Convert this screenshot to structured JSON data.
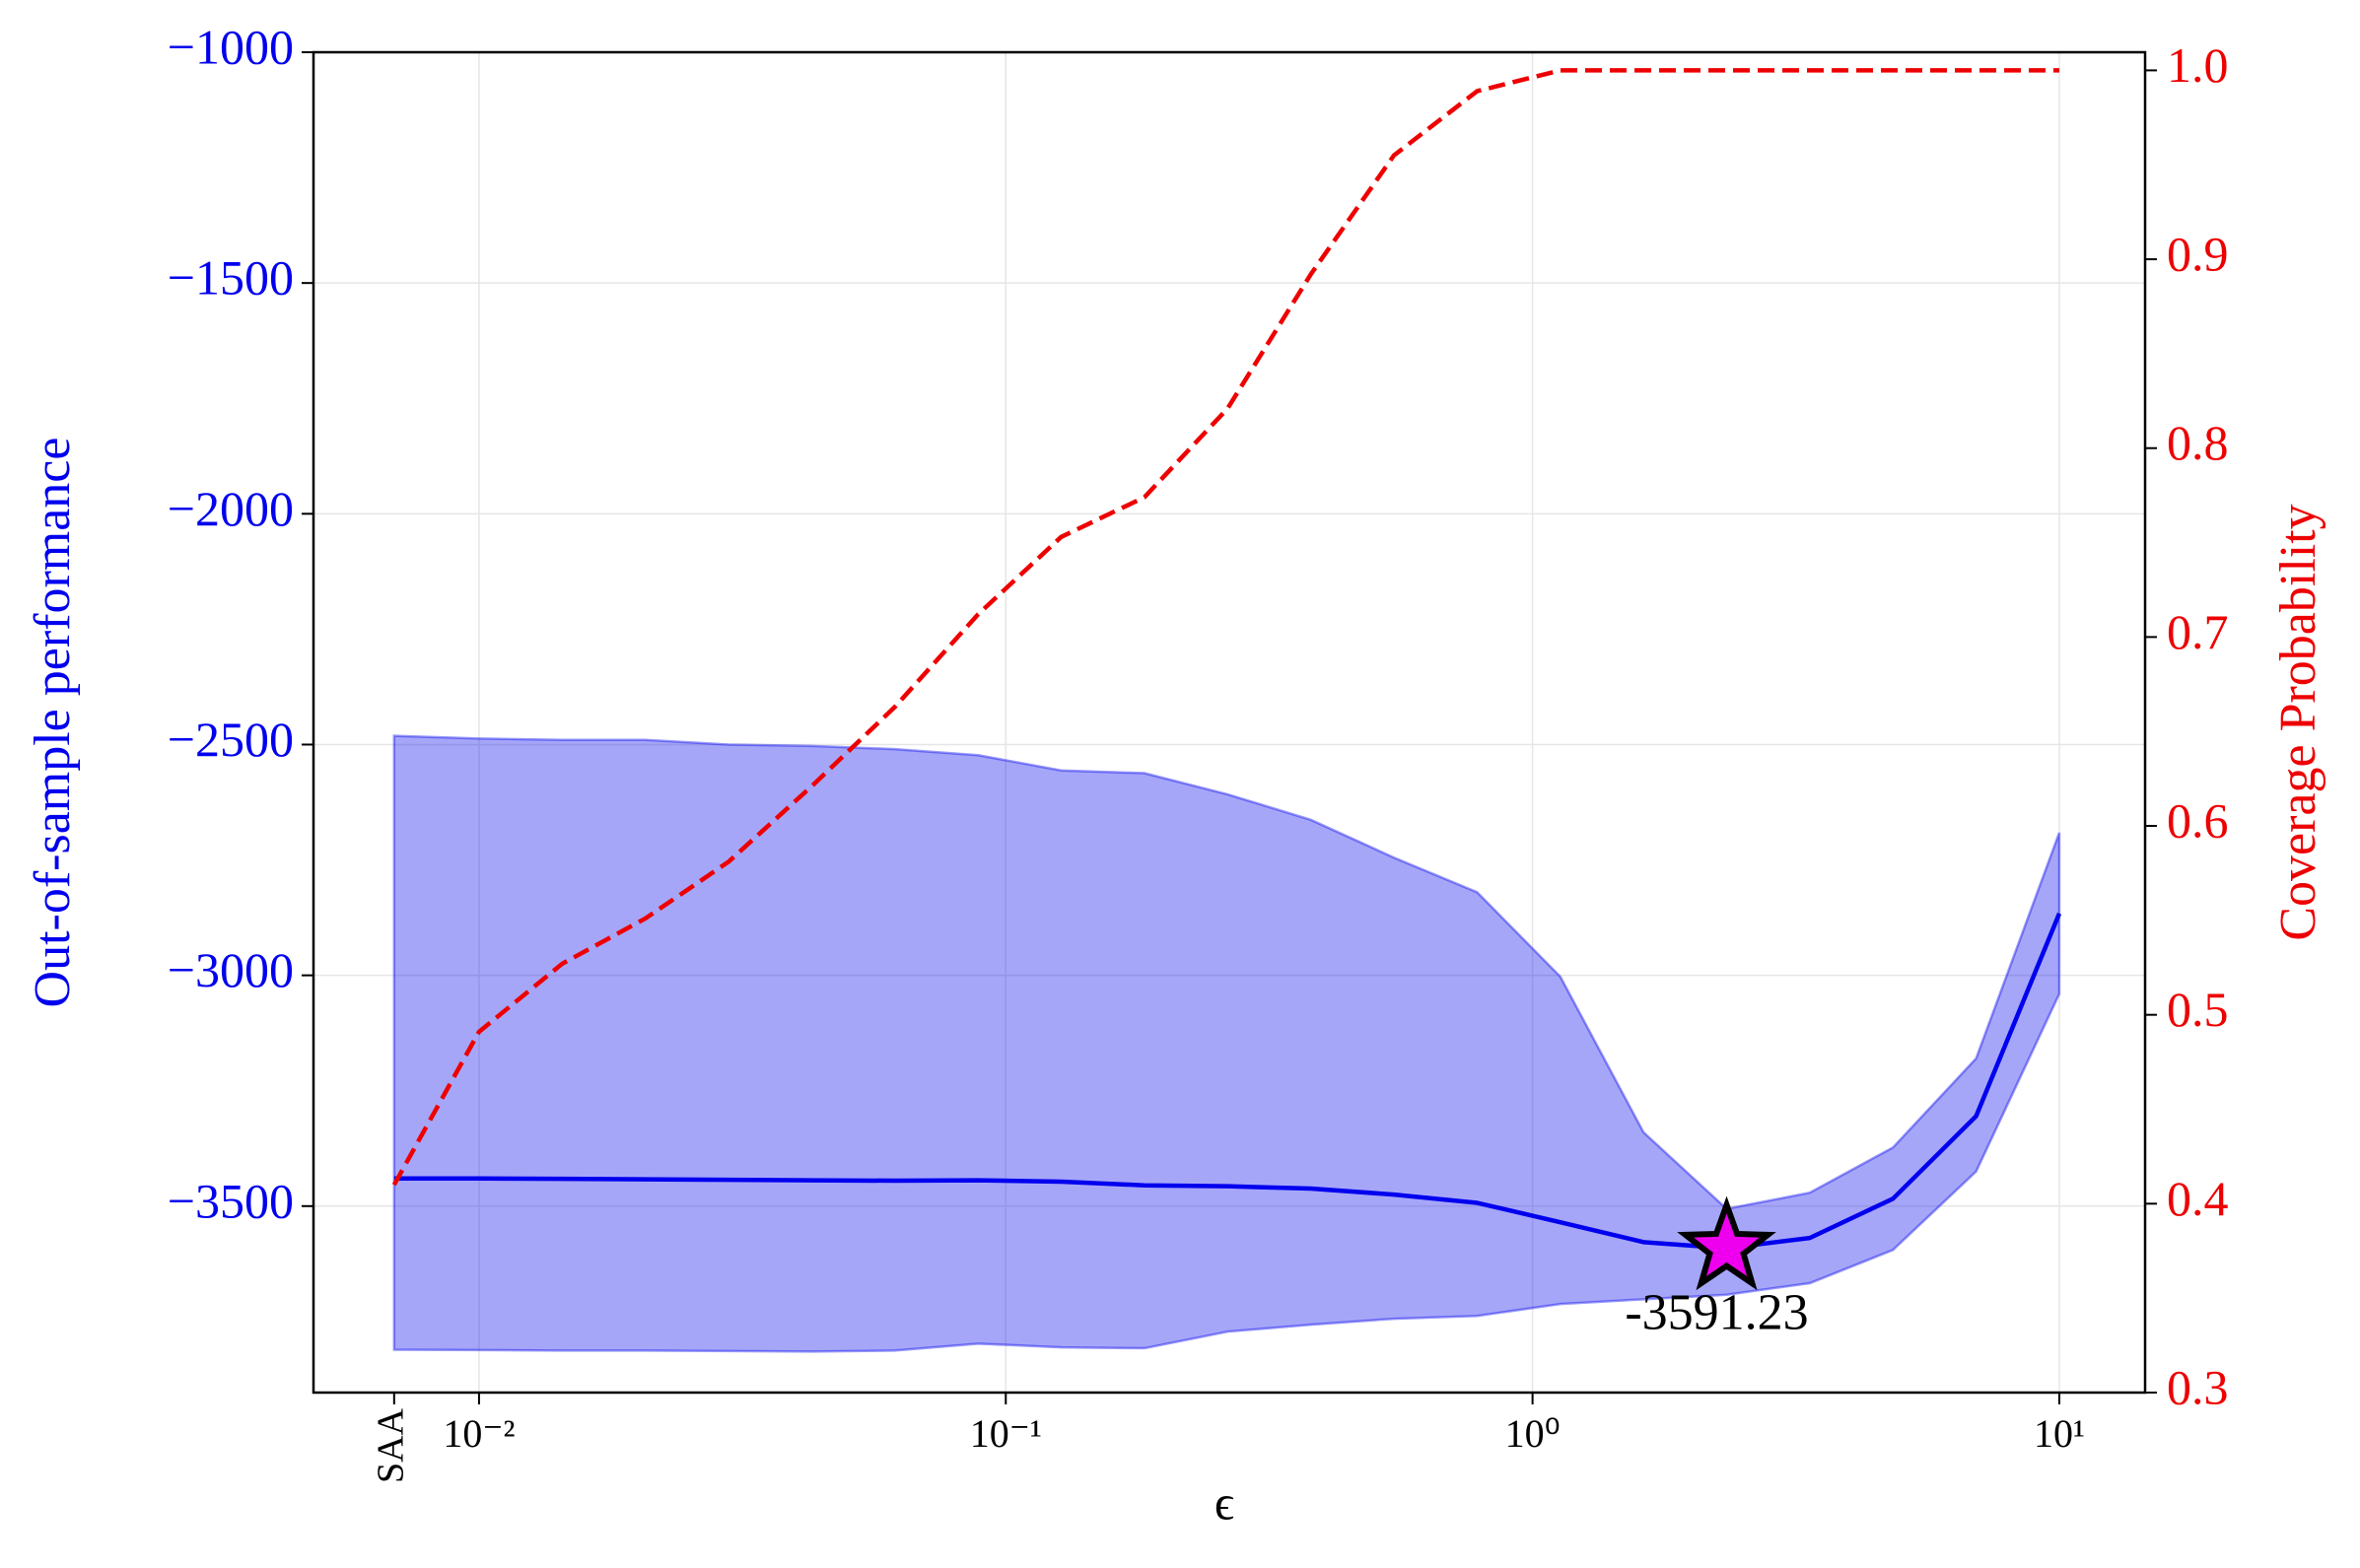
{
  "chart_data": {
    "type": "line",
    "xlabel": "ϵ",
    "ylabel": "Out-of-sample performance",
    "y2label": "Coverage Probability",
    "xscale": "log",
    "grid": true,
    "x": [
      0.0069,
      0.01,
      0.01438,
      0.02069,
      0.02976,
      0.04281,
      0.06158,
      0.08859,
      0.1274,
      0.1833,
      0.2637,
      0.3793,
      0.5456,
      0.7848,
      1.129,
      1.624,
      2.336,
      3.36,
      4.833,
      6.952,
      10
    ],
    "xlim": [
      0.00485,
      14.55
    ],
    "xticks": [
      {
        "value": 0.01,
        "label": "10⁻²"
      },
      {
        "value": 0.1,
        "label": "10⁻¹"
      },
      {
        "value": 1,
        "label": "10⁰"
      },
      {
        "value": 10,
        "label": "10¹"
      }
    ],
    "saa_tick": {
      "value": 0.0069,
      "label": "SAA"
    },
    "ylim": [
      -3904,
      -1000
    ],
    "yticks": [
      {
        "value": -1000,
        "label": "−1000"
      },
      {
        "value": -1500,
        "label": "−1500"
      },
      {
        "value": -2000,
        "label": "−2000"
      },
      {
        "value": -2500,
        "label": "−2500"
      },
      {
        "value": -3000,
        "label": "−3000"
      },
      {
        "value": -3500,
        "label": "−3500"
      }
    ],
    "y2lim": [
      0.3,
      1.0096
    ],
    "y2ticks": [
      0.3,
      0.4,
      0.5,
      0.6,
      0.7,
      0.8,
      0.9,
      {
        "value": 1.0,
        "label": "1.0"
      }
    ],
    "ycolor": "#0000ee",
    "y2color": "#ee0000",
    "band": {
      "color": "#0000ee",
      "upper": [
        -2481,
        -2487,
        -2490,
        -2490,
        -2500,
        -2503,
        -2510,
        -2523,
        -2556,
        -2562,
        -2608,
        -2663,
        -2745,
        -2820,
        -3003,
        -3340,
        -3506,
        -3471,
        -3373,
        -3180,
        -2691
      ],
      "lower": [
        -3811,
        -3812,
        -3813,
        -3813,
        -3814,
        -3815,
        -3813,
        -3798,
        -3806,
        -3808,
        -3772,
        -3757,
        -3744,
        -3738,
        -3712,
        -3702,
        -3692,
        -3667,
        -3595,
        -3425,
        -3040
      ]
    },
    "series": [
      {
        "color": "#0000ee",
        "values": [
          -3440,
          -3440,
          -3441,
          -3442,
          -3443,
          -3444,
          -3445,
          -3444,
          -3447,
          -3455,
          -3457,
          -3462,
          -3475,
          -3493,
          -3535,
          -3578,
          -3591.23,
          -3569,
          -3484,
          -3305,
          -2866
        ]
      },
      {
        "color": "#ee0000",
        "axis": "y2",
        "dashed": true,
        "values": [
          0.41,
          0.491,
          0.527,
          0.551,
          0.581,
          0.621,
          0.663,
          0.712,
          0.753,
          0.774,
          0.821,
          0.892,
          0.955,
          0.989,
          1.0,
          1.0,
          1.0,
          1.0,
          1.0,
          1.0,
          1.0
        ]
      }
    ],
    "annotation": {
      "x": 2.336,
      "y": -3591.23,
      "text": "-3591.23",
      "color": "#ee00ee"
    }
  }
}
